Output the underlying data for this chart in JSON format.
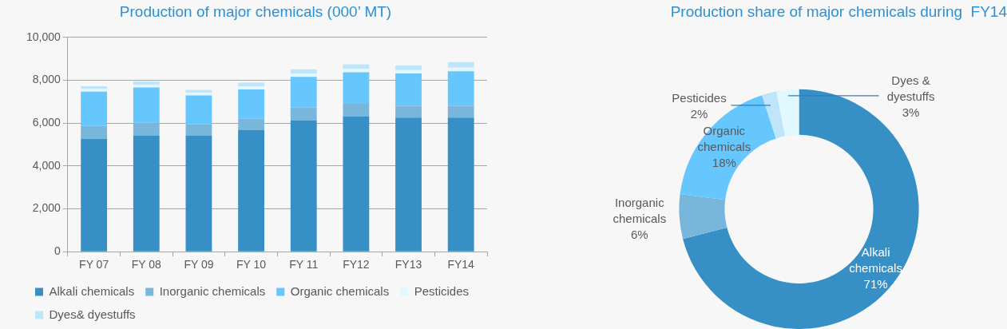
{
  "chart_data": [
    {
      "type": "bar",
      "title": "Production of major chemicals (000’ MT)",
      "stacked": true,
      "categories": [
        "FY 07",
        "FY 08",
        "FY 09",
        "FY 10",
        "FY 11",
        "FY12",
        "FY13",
        "FY14"
      ],
      "series": [
        {
          "name": "Alkali chemicals",
          "color": "#368fc5",
          "values": [
            5270,
            5410,
            5410,
            5670,
            6120,
            6310,
            6260,
            6260
          ]
        },
        {
          "name": "Inorganic chemicals",
          "color": "#79b6dc",
          "values": [
            600,
            620,
            530,
            530,
            600,
            590,
            550,
            550
          ]
        },
        {
          "name": "Organic chemicals",
          "color": "#66c6fe",
          "values": [
            1600,
            1630,
            1350,
            1370,
            1440,
            1470,
            1510,
            1610
          ]
        },
        {
          "name": "Pesticides",
          "color": "#e1f8ff",
          "values": [
            120,
            120,
            120,
            150,
            150,
            150,
            150,
            170
          ]
        },
        {
          "name": "Dyes& dyestuffs",
          "color": "#bfe5fb",
          "values": [
            130,
            160,
            140,
            170,
            200,
            220,
            220,
            260
          ]
        }
      ],
      "ylim": [
        0,
        10000
      ],
      "yticks": [
        0,
        {
          "value": 2000,
          "label": "2,000"
        },
        {
          "value": 4000,
          "label": "4,000"
        },
        {
          "value": 6000,
          "label": "6,000"
        },
        {
          "value": 8000,
          "label": "8,000"
        },
        {
          "value": 10000,
          "label": "10,000"
        }
      ],
      "grid": "y",
      "legend": "bottom"
    },
    {
      "type": "donut",
      "title": "Production share of major chemicals during  FY14",
      "categories": [
        "Alkali chemicals",
        "Inorganic chemicals",
        "Organic chemicals",
        "Pesticides",
        "Dyes & dyestuffs"
      ],
      "values": [
        71,
        6,
        18,
        2,
        3
      ],
      "colors": [
        "#368fc5",
        "#79b6dc",
        "#66c6fe",
        "#bfe5fb",
        "#e1f8ff"
      ],
      "value_labels": [
        "71%",
        "6%",
        "18%",
        "2%",
        "3%"
      ]
    }
  ]
}
